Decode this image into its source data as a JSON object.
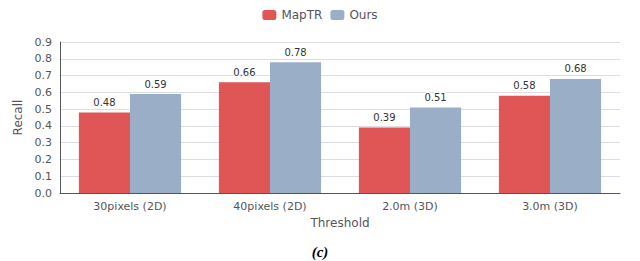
{
  "chart_data": {
    "type": "bar",
    "categories": [
      "30pixels (2D)",
      "40pixels (2D)",
      "2.0m (3D)",
      "3.0m (3D)"
    ],
    "series": [
      {
        "name": "MapTR",
        "color": "#e05555",
        "values": [
          0.48,
          0.66,
          0.39,
          0.58
        ]
      },
      {
        "name": "Ours",
        "color": "#9baec8",
        "values": [
          0.59,
          0.78,
          0.51,
          0.68
        ]
      }
    ],
    "xlabel": "Threshold",
    "ylabel": "Recall",
    "ylim": [
      0,
      0.9
    ],
    "yticks": [
      {
        "value": 0,
        "label": "0.0"
      },
      0.1,
      0.2,
      0.3,
      0.4,
      0.5,
      0.6,
      0.7,
      0.8,
      0.9
    ],
    "grid": true,
    "legend": "top",
    "data_labels": true,
    "annotations": [
      "(c)"
    ]
  }
}
